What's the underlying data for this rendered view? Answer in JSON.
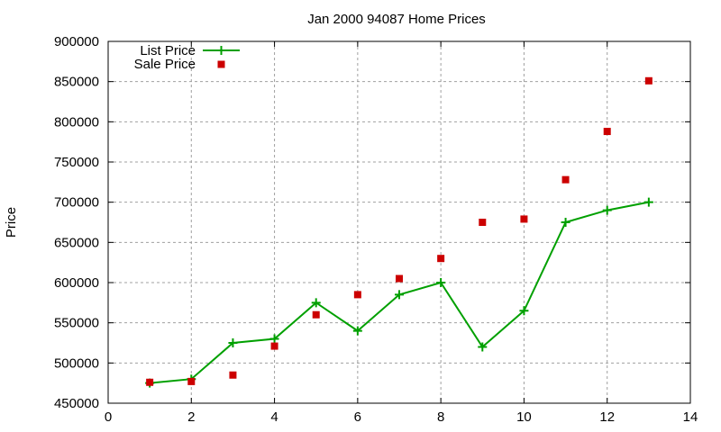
{
  "chart_data": {
    "type": "line",
    "title": "Jan 2000 94087 Home Prices",
    "xlabel": "",
    "ylabel": "Price",
    "xlim": [
      0,
      14
    ],
    "ylim": [
      450000,
      900000
    ],
    "x_ticks": [
      0,
      2,
      4,
      6,
      8,
      10,
      12,
      14
    ],
    "y_ticks": [
      450000,
      500000,
      550000,
      600000,
      650000,
      700000,
      750000,
      800000,
      850000,
      900000
    ],
    "grid": true,
    "legend_placement": "top-left",
    "series": [
      {
        "name": "List Price",
        "style": "linespoints",
        "color": "#00a000",
        "x": [
          1,
          2,
          3,
          4,
          5,
          6,
          7,
          8,
          9,
          10,
          11,
          12,
          13
        ],
        "values": [
          475000,
          480000,
          525000,
          530000,
          575000,
          540000,
          585000,
          600000,
          520000,
          565000,
          675000,
          690000,
          700000
        ]
      },
      {
        "name": "Sale Price",
        "style": "points",
        "color": "#cc0000",
        "x": [
          1,
          2,
          3,
          4,
          5,
          6,
          7,
          8,
          9,
          10,
          11,
          12,
          13
        ],
        "values": [
          476000,
          477000,
          485000,
          521000,
          560000,
          585000,
          605000,
          630000,
          675000,
          679000,
          728000,
          788000,
          851000
        ]
      }
    ]
  }
}
